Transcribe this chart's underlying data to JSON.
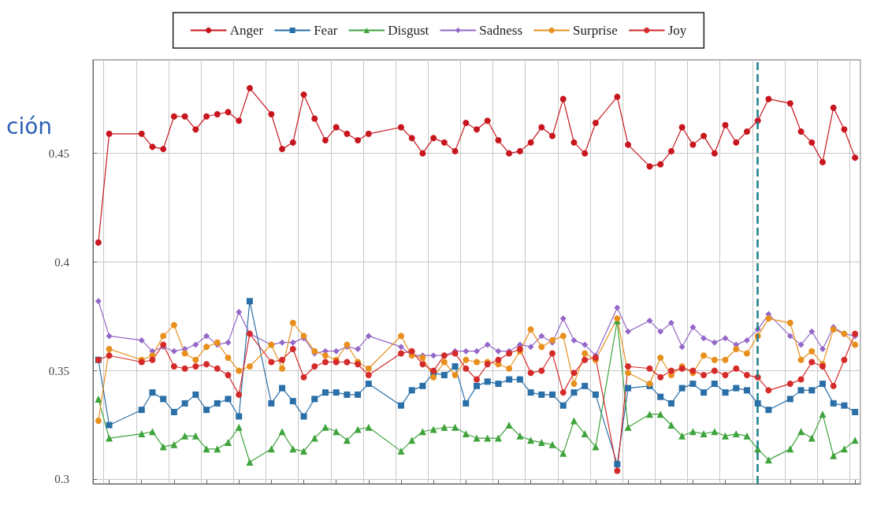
{
  "chart_data": {
    "type": "line",
    "categories": [
      null,
      null,
      null,
      null,
      null,
      null,
      null,
      null,
      null,
      null,
      null,
      null,
      null,
      null,
      null,
      null,
      null,
      null,
      null,
      null,
      null,
      null,
      null,
      null,
      null,
      null,
      null,
      null,
      null,
      null,
      null,
      null,
      null,
      null,
      null,
      null,
      null,
      null,
      null,
      null,
      null,
      null,
      null,
      null,
      null,
      null,
      null,
      null,
      null,
      null,
      null,
      null,
      null,
      null,
      null,
      null,
      null,
      null,
      null,
      null,
      null,
      null,
      null,
      null,
      null,
      null,
      null,
      null,
      null,
      null,
      null
    ],
    "series": [
      {
        "name": "Anger",
        "color": "#c8161e",
        "marker": "circle",
        "values": [
          0.409,
          0.459,
          null,
          null,
          0.459,
          0.453,
          0.452,
          0.467,
          0.467,
          0.461,
          0.467,
          0.468,
          0.469,
          0.465,
          0.48,
          null,
          0.468,
          0.452,
          0.455,
          0.477,
          0.466,
          0.456,
          0.462,
          0.459,
          0.456,
          0.459,
          null,
          null,
          0.462,
          0.457,
          0.45,
          0.457,
          0.455,
          0.451,
          0.464,
          0.461,
          0.465,
          0.456,
          0.45,
          0.451,
          0.455,
          0.462,
          0.458,
          0.475,
          0.455,
          0.45,
          0.464,
          null,
          0.476,
          0.454,
          null,
          0.444,
          0.445,
          0.451,
          0.462,
          0.454,
          0.458,
          0.45,
          0.463,
          0.455,
          0.46,
          0.465,
          0.475,
          null,
          0.473,
          0.46,
          0.455,
          0.446,
          0.471,
          0.461,
          0.448
        ]
      },
      {
        "name": "Fear",
        "color": "#2a6fa8",
        "marker": "square",
        "values": [
          0.355,
          0.325,
          null,
          null,
          0.332,
          0.34,
          0.337,
          0.331,
          0.335,
          0.339,
          0.332,
          0.335,
          0.337,
          0.329,
          0.382,
          null,
          0.335,
          0.342,
          0.336,
          0.329,
          0.337,
          0.34,
          0.34,
          0.339,
          0.339,
          0.344,
          null,
          null,
          0.334,
          0.341,
          0.343,
          0.349,
          0.348,
          0.352,
          0.335,
          0.343,
          0.345,
          0.344,
          0.346,
          0.346,
          0.34,
          0.339,
          0.339,
          0.334,
          0.34,
          0.343,
          0.339,
          null,
          0.307,
          0.342,
          null,
          0.343,
          0.338,
          0.335,
          0.342,
          0.344,
          0.34,
          0.344,
          0.34,
          0.342,
          0.341,
          0.335,
          0.332,
          null,
          0.337,
          0.341,
          0.341,
          0.344,
          0.335,
          0.334,
          0.331
        ]
      },
      {
        "name": "Disgust",
        "color": "#3fa33c",
        "marker": "triangle",
        "values": [
          0.337,
          0.319,
          null,
          null,
          0.321,
          0.322,
          0.315,
          0.316,
          0.32,
          0.32,
          0.314,
          0.314,
          0.317,
          0.324,
          0.308,
          null,
          0.314,
          0.322,
          0.314,
          0.313,
          0.319,
          0.324,
          0.322,
          0.318,
          0.323,
          0.324,
          null,
          null,
          0.313,
          0.318,
          0.322,
          0.323,
          0.324,
          0.324,
          0.321,
          0.319,
          0.319,
          0.319,
          0.325,
          0.32,
          0.318,
          0.317,
          0.316,
          0.312,
          0.327,
          0.321,
          0.315,
          null,
          0.373,
          0.324,
          null,
          0.33,
          0.33,
          0.325,
          0.32,
          0.322,
          0.321,
          0.322,
          0.32,
          0.321,
          0.32,
          0.314,
          0.309,
          null,
          0.314,
          0.322,
          0.319,
          0.33,
          0.311,
          0.314,
          0.318
        ]
      },
      {
        "name": "Sadness",
        "color": "#9468c8",
        "marker": "diamond",
        "values": [
          0.382,
          0.366,
          null,
          null,
          0.364,
          0.359,
          0.361,
          0.359,
          0.36,
          0.362,
          0.366,
          0.362,
          0.363,
          0.377,
          0.367,
          null,
          0.362,
          0.363,
          0.363,
          0.365,
          0.358,
          0.359,
          0.359,
          0.361,
          0.36,
          0.366,
          null,
          null,
          0.361,
          0.357,
          0.357,
          0.357,
          0.357,
          0.359,
          0.359,
          0.359,
          0.362,
          0.359,
          0.359,
          0.362,
          0.361,
          0.366,
          0.363,
          0.374,
          0.364,
          0.362,
          0.357,
          null,
          0.379,
          0.368,
          null,
          0.373,
          0.368,
          0.372,
          0.361,
          0.37,
          0.365,
          0.363,
          0.365,
          0.362,
          0.364,
          0.369,
          0.376,
          null,
          0.366,
          0.362,
          0.368,
          0.36,
          0.37,
          0.367,
          0.366
        ]
      },
      {
        "name": "Surprise",
        "color": "#e8901e",
        "marker": "circle",
        "values": [
          0.327,
          0.36,
          null,
          null,
          0.355,
          0.357,
          0.366,
          0.371,
          0.358,
          0.355,
          0.361,
          0.363,
          0.356,
          0.35,
          0.352,
          null,
          0.362,
          0.351,
          0.372,
          0.366,
          0.359,
          0.357,
          0.355,
          0.362,
          0.354,
          0.351,
          null,
          null,
          0.366,
          0.357,
          0.356,
          0.347,
          0.354,
          0.348,
          0.355,
          0.354,
          0.354,
          0.353,
          0.351,
          0.359,
          0.369,
          0.361,
          0.364,
          0.366,
          0.344,
          0.358,
          0.355,
          null,
          0.374,
          0.349,
          null,
          0.344,
          0.356,
          0.348,
          0.352,
          0.349,
          0.357,
          0.355,
          0.355,
          0.36,
          0.358,
          0.366,
          0.374,
          null,
          0.372,
          0.355,
          0.359,
          0.353,
          0.369,
          0.367,
          0.362
        ]
      },
      {
        "name": "Joy",
        "color": "#d42a2a",
        "marker": "circle",
        "values": [
          0.355,
          0.357,
          null,
          null,
          0.354,
          0.355,
          0.362,
          0.352,
          0.351,
          0.352,
          0.353,
          0.351,
          0.348,
          0.339,
          0.367,
          null,
          0.354,
          0.355,
          0.36,
          0.347,
          0.352,
          0.354,
          0.354,
          0.354,
          0.353,
          0.348,
          null,
          null,
          0.358,
          0.359,
          0.353,
          0.35,
          0.357,
          0.358,
          0.351,
          0.346,
          0.353,
          0.355,
          0.358,
          0.36,
          0.349,
          0.35,
          0.358,
          0.34,
          0.349,
          0.355,
          0.356,
          null,
          0.304,
          0.352,
          null,
          0.351,
          0.347,
          0.35,
          0.351,
          0.35,
          0.348,
          0.35,
          0.348,
          0.351,
          0.348,
          0.347,
          0.341,
          null,
          0.344,
          0.346,
          0.354,
          0.352,
          0.343,
          0.355,
          0.367
        ]
      }
    ],
    "ylim": [
      0.298,
      0.493
    ],
    "yticks": [
      0.3,
      0.35,
      0.4,
      0.45
    ],
    "tick_labels": "y",
    "grid": true,
    "legend": "top",
    "line_style": "solid",
    "annotations": [
      "ción"
    ]
  }
}
